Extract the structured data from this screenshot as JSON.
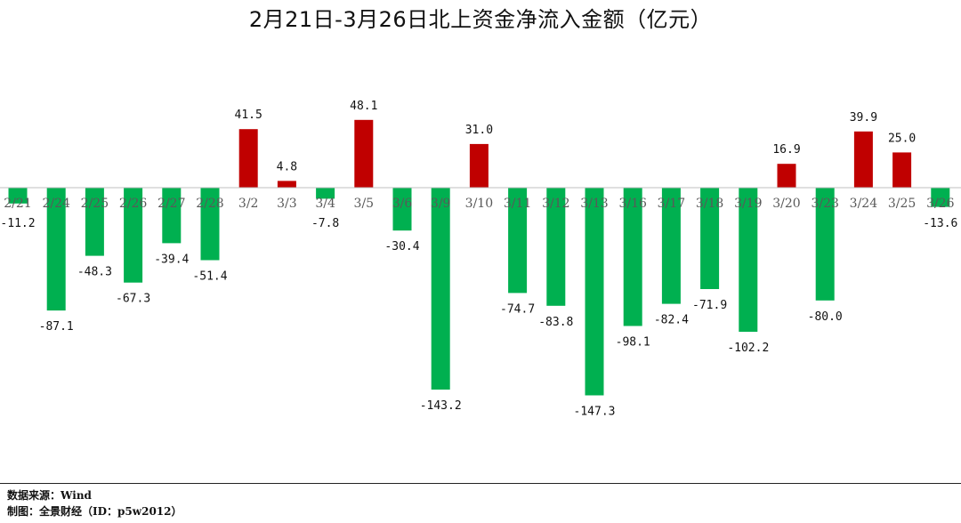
{
  "chart_data": {
    "type": "bar",
    "title": "2月21日-3月26日北上资金净流入金额（亿元）",
    "categories": [
      "2/21",
      "2/24",
      "2/25",
      "2/26",
      "2/27",
      "2/28",
      "3/2",
      "3/3",
      "3/4",
      "3/5",
      "3/6",
      "3/9",
      "3/10",
      "3/11",
      "3/12",
      "3/13",
      "3/16",
      "3/17",
      "3/18",
      "3/19",
      "3/20",
      "3/23",
      "3/24",
      "3/25",
      "3/26"
    ],
    "values": [
      -11.2,
      -87.1,
      -48.3,
      -67.3,
      -39.4,
      -51.4,
      41.5,
      4.8,
      -7.8,
      48.1,
      -30.4,
      -143.2,
      31.0,
      -74.7,
      -83.8,
      -147.3,
      -98.1,
      -82.4,
      -71.9,
      -102.2,
      16.9,
      -80.0,
      39.9,
      25.0,
      -13.6
    ],
    "value_labels": [
      "-11.2",
      "-87.1",
      "-48.3",
      "-67.3",
      "-39.4",
      "-51.4",
      "41.5",
      "4.8",
      "-7.8",
      "48.1",
      "-30.4",
      "-143.2",
      "31.0",
      "-74.7",
      "-83.8",
      "-147.3",
      "-98.1",
      "-82.4",
      "-71.9",
      "-102.2",
      "16.9",
      "-80.0",
      "39.9",
      "25.0",
      "-13.6"
    ],
    "colors": {
      "positive": "#C00000",
      "negative": "#00B050",
      "axis": "#BFBFBF"
    },
    "xlabel": "",
    "ylabel": "",
    "grid": false,
    "legend": "none"
  },
  "footer": {
    "source": "数据来源：Wind",
    "credit": "制图：全景财经（ID：p5w2012）"
  }
}
